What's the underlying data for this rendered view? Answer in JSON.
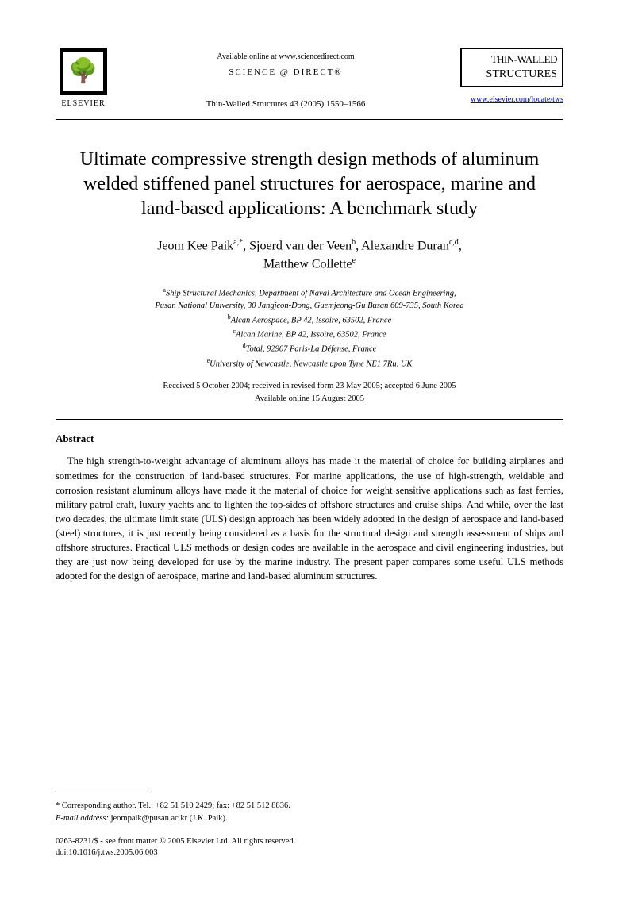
{
  "header": {
    "elsevier_label": "ELSEVIER",
    "available_online": "Available online at www.sciencedirect.com",
    "science_direct": "SCIENCE @ DIRECT®",
    "journal_ref": "Thin-Walled Structures 43 (2005) 1550–1566",
    "journal_title_1": "THIN-WALLED",
    "journal_title_2": "STRUCTURES",
    "journal_url": "www.elsevier.com/locate/tws"
  },
  "title": "Ultimate compressive strength design methods of aluminum welded stiffened panel structures for aerospace, marine and land-based applications: A benchmark study",
  "authors": {
    "line1_name1": "Jeom Kee Paik",
    "line1_sup1": "a,*",
    "line1_name2": ", Sjoerd van der Veen",
    "line1_sup2": "b",
    "line1_name3": ", Alexandre Duran",
    "line1_sup3": "c,d",
    "line1_comma": ",",
    "line2_name": "Matthew Collette",
    "line2_sup": "e"
  },
  "affiliations": {
    "a": "Ship Structural Mechanics, Department of Naval Architecture and Ocean Engineering,",
    "a2": "Pusan National University, 30 Jangjeon-Dong, Guemjeong-Gu Busan 609-735, South Korea",
    "b": "Alcan Aerospace, BP 42, Issoire, 63502, France",
    "c": "Alcan Marine, BP 42, Issoire, 63502, France",
    "d": "Total, 92907 Paris-La Défense, France",
    "e": "University of Newcastle, Newcastle upon Tyne NE1 7Ru, UK"
  },
  "dates": {
    "received": "Received 5 October 2004; received in revised form 23 May 2005; accepted 6 June 2005",
    "available": "Available online 15 August 2005"
  },
  "abstract": {
    "heading": "Abstract",
    "text": "The high strength-to-weight advantage of aluminum alloys has made it the material of choice for building airplanes and sometimes for the construction of land-based structures. For marine applications, the use of high-strength, weldable and corrosion resistant aluminum alloys have made it the material of choice for weight sensitive applications such as fast ferries, military patrol craft, luxury yachts and to lighten the top-sides of offshore structures and cruise ships. And while, over the last two decades, the ultimate limit state (ULS) design approach has been widely adopted in the design of aerospace and land-based (steel) structures, it is just recently being considered as a basis for the structural design and strength assessment of ships and offshore structures. Practical ULS methods or design codes are available in the aerospace and civil engineering industries, but they are just now being developed for use by the marine industry. The present paper compares some useful ULS methods adopted for the design of aerospace, marine and land-based aluminum structures."
  },
  "footer": {
    "corresponding": "* Corresponding author. Tel.: +82 51 510 2429; fax: +82 51 512 8836.",
    "email_label": "E-mail address:",
    "email": " jeompaik@pusan.ac.kr (J.K. Paik).",
    "copyright": "0263-8231/$ - see front matter © 2005 Elsevier Ltd. All rights reserved.",
    "doi": "doi:10.1016/j.tws.2005.06.003"
  }
}
